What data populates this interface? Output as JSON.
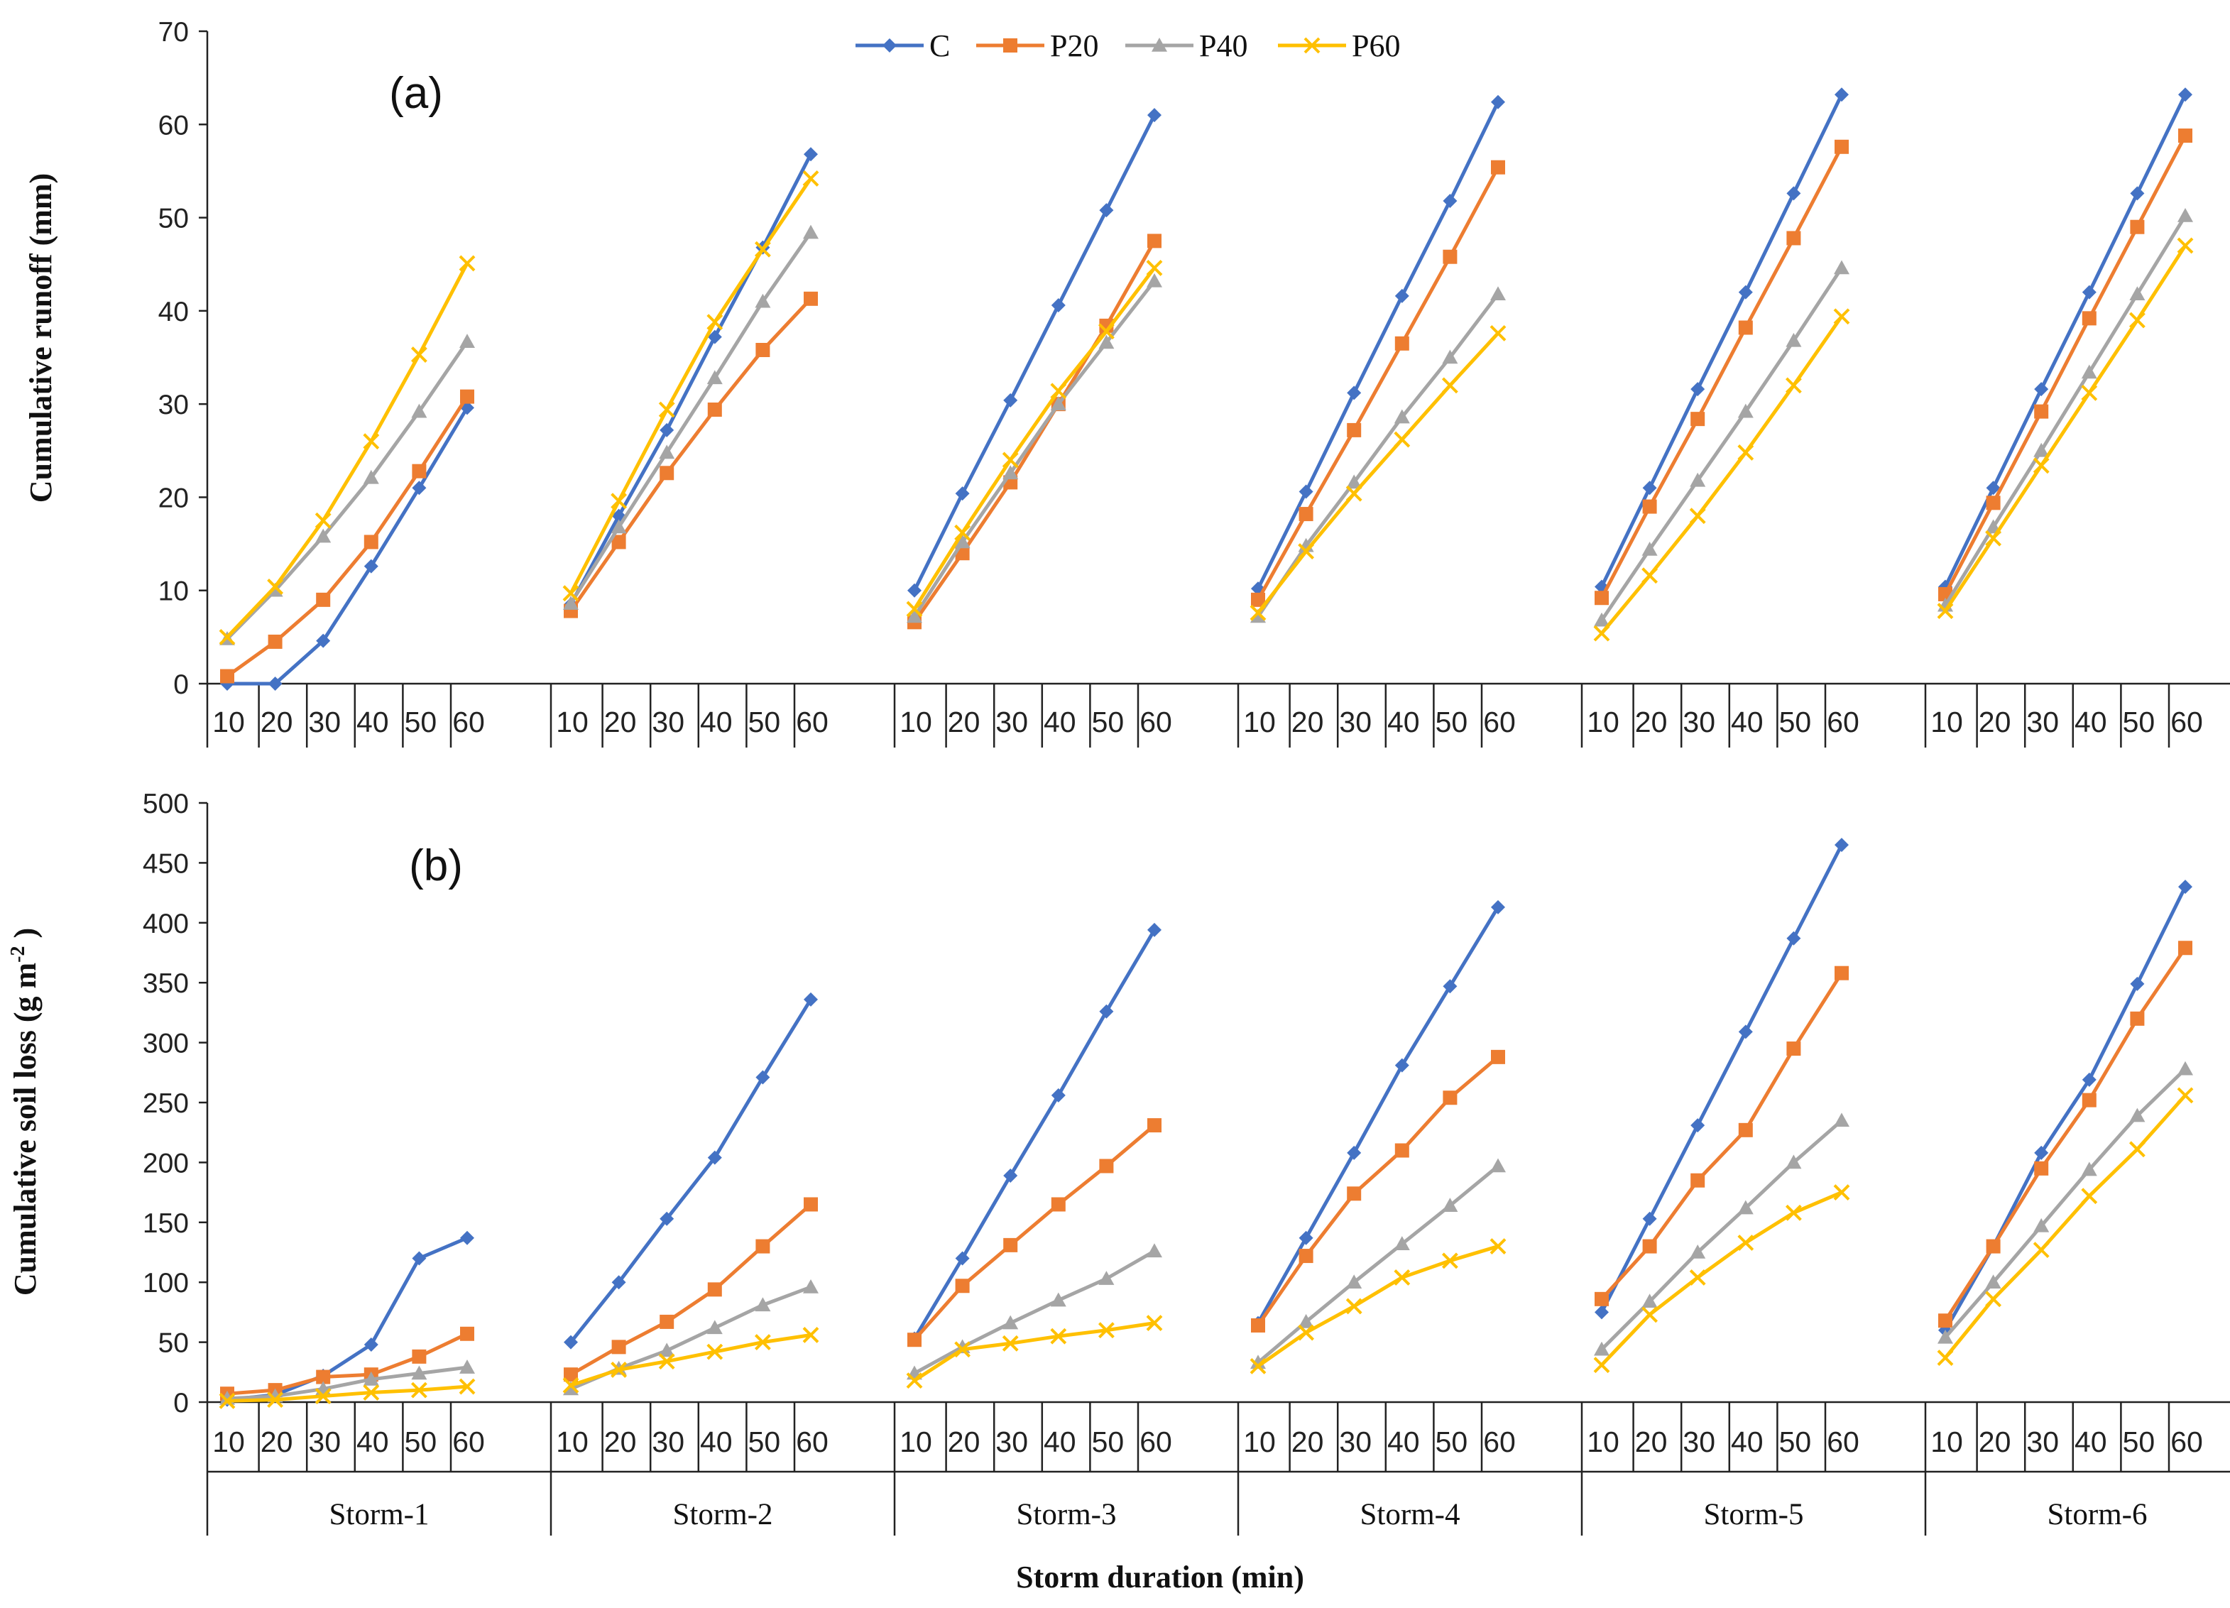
{
  "chart_data": [
    {
      "type": "line",
      "panel_label": "(a)",
      "ylabel": "Cumulative  runoff  (mm)",
      "ylim": [
        0,
        70
      ],
      "yticks": [
        0,
        10,
        20,
        30,
        40,
        50,
        60,
        70
      ],
      "x_ticks": [
        "10",
        "20",
        "30",
        "40",
        "50",
        "60"
      ],
      "groups": [
        "Storm-1",
        "Storm-2",
        "Storm-3",
        "Storm-4",
        "Storm-5",
        "Storm-6"
      ],
      "series": [
        {
          "name": "C",
          "color": "#4472C4",
          "marker": "diamond",
          "values": [
            [
              0,
              0,
              4.6,
              12.6,
              21,
              29.6
            ],
            [
              8.5,
              18,
              27.2,
              37.2,
              46.8,
              56.8
            ],
            [
              10,
              20.4,
              30.4,
              40.6,
              50.8,
              61
            ],
            [
              10.2,
              20.6,
              31.2,
              41.6,
              51.8,
              62.4
            ],
            [
              10.4,
              21,
              31.6,
              42,
              52.6,
              63.2
            ],
            [
              10.4,
              21,
              31.6,
              42,
              52.6,
              63.2
            ]
          ]
        },
        {
          "name": "P20",
          "color": "#ED7D31",
          "marker": "square",
          "values": [
            [
              0.8,
              4.5,
              9,
              15.2,
              22.8,
              30.8
            ],
            [
              7.8,
              15.2,
              22.6,
              29.4,
              35.8,
              41.3
            ],
            [
              6.6,
              14,
              21.6,
              30,
              38.4,
              47.5
            ],
            [
              9,
              18.2,
              27.2,
              36.5,
              45.8,
              55.4
            ],
            [
              9.2,
              19,
              28.4,
              38.2,
              47.8,
              57.6
            ],
            [
              9.6,
              19.4,
              29.2,
              39.2,
              49,
              58.8
            ]
          ]
        },
        {
          "name": "P40",
          "color": "#A5A5A5",
          "marker": "triangle",
          "values": [
            [
              4.8,
              10,
              15.8,
              22.1,
              29.2,
              36.7
            ],
            [
              8.6,
              16.8,
              24.8,
              32.8,
              41,
              48.4
            ],
            [
              7.2,
              15.2,
              22.6,
              30,
              36.6,
              43.2
            ],
            [
              7.2,
              14.8,
              21.6,
              28.6,
              35,
              41.8
            ],
            [
              6.8,
              14.4,
              21.8,
              29.2,
              36.8,
              44.6
            ],
            [
              8.4,
              16.8,
              25,
              33.4,
              41.8,
              50.2
            ]
          ]
        },
        {
          "name": "P60",
          "color": "#FFC000",
          "marker": "cross",
          "values": [
            [
              5,
              10.4,
              17.5,
              26,
              35.3,
              45.1
            ],
            [
              9.7,
              19.6,
              29.4,
              38.8,
              46.6,
              54.2
            ],
            [
              8,
              16.2,
              24,
              31.4,
              37.8,
              44.6
            ],
            [
              7.6,
              14.2,
              20.4,
              26.2,
              32,
              37.6
            ],
            [
              5.4,
              11.6,
              18,
              24.8,
              32,
              39.4
            ],
            [
              7.8,
              15.6,
              23.4,
              31.2,
              39,
              47
            ]
          ]
        }
      ]
    },
    {
      "type": "line",
      "panel_label": "(b)",
      "ylabel": "Cumulative  soil loss (g  m",
      "ylabel_sup": "-2",
      "ylabel_end": " )",
      "ylim": [
        0,
        500
      ],
      "yticks": [
        0,
        50,
        100,
        150,
        200,
        250,
        300,
        350,
        400,
        450,
        500
      ],
      "x_ticks": [
        "10",
        "20",
        "30",
        "40",
        "50",
        "60"
      ],
      "groups": [
        "Storm-1",
        "Storm-2",
        "Storm-3",
        "Storm-4",
        "Storm-5",
        "Storm-6"
      ],
      "xlabel": "Storm  duration  (min)",
      "series": [
        {
          "name": "C",
          "color": "#4472C4",
          "marker": "diamond",
          "values": [
            [
              2,
              6,
              22,
              48,
              120,
              137
            ],
            [
              50,
              100,
              153,
              204,
              271,
              336
            ],
            [
              53,
              120,
              189,
              256,
              326,
              394
            ],
            [
              66,
              137,
              208,
              281,
              347,
              413
            ],
            [
              75,
              153,
              231,
              309,
              387,
              465
            ],
            [
              60,
              130,
              208,
              269,
              349,
              430
            ]
          ]
        },
        {
          "name": "P20",
          "color": "#ED7D31",
          "marker": "square",
          "values": [
            [
              7,
              10,
              21,
              23,
              38,
              57
            ],
            [
              23,
              46,
              67,
              94,
              130,
              165
            ],
            [
              52,
              97,
              131,
              165,
              197,
              231
            ],
            [
              64,
              122,
              174,
              210,
              254,
              288
            ],
            [
              86,
              130,
              185,
              227,
              295,
              358
            ],
            [
              68,
              130,
              195,
              252,
              320,
              379
            ]
          ]
        },
        {
          "name": "P40",
          "color": "#A5A5A5",
          "marker": "triangle",
          "values": [
            [
              3,
              5,
              11,
              19,
              24,
              29
            ],
            [
              11,
              28,
              43,
              62,
              81,
              96
            ],
            [
              24,
              46,
              66,
              85,
              103,
              126
            ],
            [
              33,
              67,
              100,
              132,
              164,
              197
            ],
            [
              44,
              84,
              125,
              162,
              200,
              235
            ],
            [
              54,
              100,
              147,
              194,
              239,
              278
            ]
          ]
        },
        {
          "name": "P60",
          "color": "#FFC000",
          "marker": "cross",
          "values": [
            [
              1,
              2,
              5,
              8,
              10,
              13
            ],
            [
              14,
              27,
              34,
              42,
              50,
              56
            ],
            [
              18,
              44,
              49,
              55,
              60,
              66
            ],
            [
              30,
              58,
              80,
              104,
              118,
              130
            ],
            [
              31,
              73,
              104,
              133,
              158,
              175
            ],
            [
              37,
              86,
              127,
              172,
              211,
              256
            ]
          ]
        }
      ]
    }
  ]
}
